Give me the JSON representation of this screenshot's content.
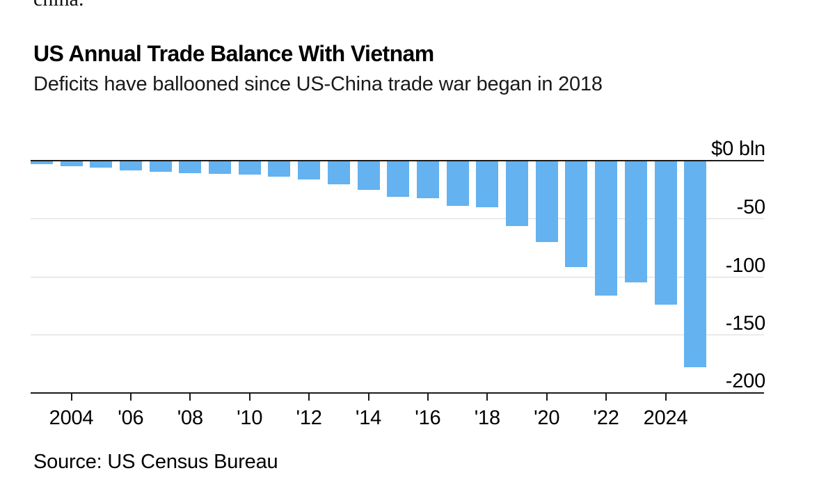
{
  "page": {
    "clipped_text_above": "china.",
    "background_color": "#ffffff"
  },
  "header": {
    "title": "US Annual Trade Balance With Vietnam",
    "subtitle": "Deficits have ballooned since US-China trade war began in 2018"
  },
  "footer": {
    "source": "Source: US Census Bureau"
  },
  "chart_data": {
    "type": "bar",
    "title": "US Annual Trade Balance With Vietnam",
    "subtitle": "Deficits have ballooned since US-China trade war began in 2018",
    "source": "US Census Bureau",
    "unit": "$ bln",
    "bar_color": "#64b2f0",
    "axis_color": "#1a1a1a",
    "gridline_color": "#d9d9d9",
    "grid": true,
    "ylim": [
      -200,
      0
    ],
    "categories": [
      2003,
      2004,
      2005,
      2006,
      2007,
      2008,
      2009,
      2010,
      2011,
      2012,
      2013,
      2014,
      2015,
      2016,
      2017,
      2018,
      2019,
      2020,
      2021,
      2022,
      2023,
      2024,
      2025
    ],
    "values": [
      -2.5,
      -4.5,
      -5.4,
      -7.8,
      -9.1,
      -10.1,
      -11.1,
      -11.2,
      -13.2,
      -15.6,
      -19.6,
      -24.9,
      -30.9,
      -31.9,
      -38.3,
      -39.5,
      -55.8,
      -69.7,
      -91.0,
      -116.1,
      -104.6,
      -123.5,
      -178.0
    ],
    "yticks": [
      {
        "value": 0,
        "label": "$0 bln"
      },
      {
        "value": -50,
        "label": "-50"
      },
      {
        "value": -100,
        "label": "-100"
      },
      {
        "value": -150,
        "label": "-150"
      },
      {
        "value": -200,
        "label": "-200"
      }
    ],
    "xticks": [
      {
        "year": 2004,
        "label": "2004"
      },
      {
        "year": 2006,
        "label": "'06"
      },
      {
        "year": 2008,
        "label": "'08"
      },
      {
        "year": 2010,
        "label": "'10"
      },
      {
        "year": 2012,
        "label": "'12"
      },
      {
        "year": 2014,
        "label": "'14"
      },
      {
        "year": 2016,
        "label": "'16"
      },
      {
        "year": 2018,
        "label": "'18"
      },
      {
        "year": 2020,
        "label": "'20"
      },
      {
        "year": 2022,
        "label": "'22"
      },
      {
        "year": 2024,
        "label": "2024"
      }
    ]
  }
}
